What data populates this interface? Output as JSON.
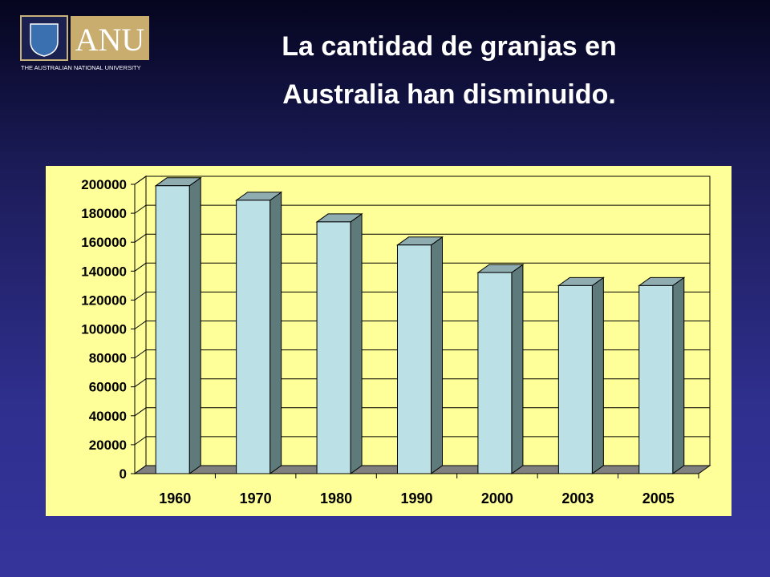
{
  "logo": {
    "mark": "ANU",
    "name": "THE AUSTRALIAN NATIONAL UNIVERSITY"
  },
  "chart_data": {
    "type": "bar3d",
    "title": "La cantidad de granjas en Australia han disminuido.",
    "categories": [
      "1960",
      "1970",
      "1980",
      "1990",
      "2000",
      "2003",
      "2005"
    ],
    "values": [
      199000,
      189000,
      174000,
      158000,
      139000,
      130000,
      130000
    ],
    "color": "#bbe0e6",
    "ylim": [
      0,
      200000
    ],
    "yticks": [
      0,
      20000,
      40000,
      60000,
      80000,
      100000,
      120000,
      140000,
      160000,
      180000,
      200000
    ],
    "grid": true
  }
}
